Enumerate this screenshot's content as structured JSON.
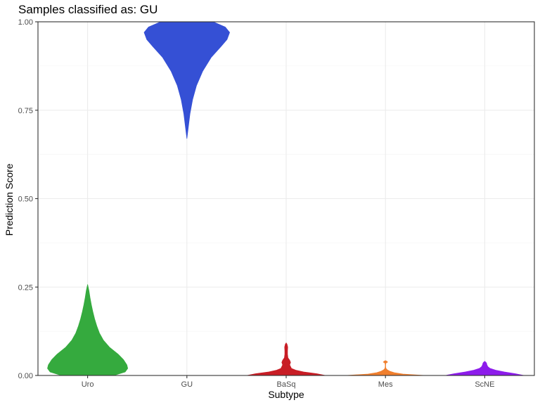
{
  "chart_data": {
    "type": "violin",
    "title": "Samples classified as: GU",
    "xlabel": "Subtype",
    "ylabel": "Prediction Score",
    "ylim": [
      0,
      1
    ],
    "y_ticks": [
      0.0,
      0.25,
      0.5,
      0.75,
      1.0
    ],
    "y_tick_labels": [
      "0.00",
      "0.25",
      "0.50",
      "0.75",
      "1.00"
    ],
    "grid": true,
    "categories": [
      "Uro",
      "GU",
      "BaSq",
      "Mes",
      "ScNE"
    ],
    "series": [
      {
        "category": "Uro",
        "color": "#35AA3E",
        "min": 0.0,
        "max": 0.257,
        "profile": [
          [
            0.0,
            0.6
          ],
          [
            0.01,
            0.86
          ],
          [
            0.02,
            0.92
          ],
          [
            0.03,
            0.9
          ],
          [
            0.045,
            0.82
          ],
          [
            0.06,
            0.7
          ],
          [
            0.08,
            0.5
          ],
          [
            0.1,
            0.36
          ],
          [
            0.12,
            0.27
          ],
          [
            0.14,
            0.21
          ],
          [
            0.16,
            0.16
          ],
          [
            0.18,
            0.12
          ],
          [
            0.2,
            0.085
          ],
          [
            0.22,
            0.055
          ],
          [
            0.24,
            0.03
          ],
          [
            0.257,
            0.0
          ]
        ]
      },
      {
        "category": "GU",
        "color": "#3550D5",
        "min": 0.67,
        "max": 1.0,
        "profile": [
          [
            0.67,
            0.0
          ],
          [
            0.7,
            0.03
          ],
          [
            0.74,
            0.07
          ],
          [
            0.78,
            0.13
          ],
          [
            0.82,
            0.22
          ],
          [
            0.86,
            0.36
          ],
          [
            0.9,
            0.56
          ],
          [
            0.93,
            0.78
          ],
          [
            0.95,
            0.92
          ],
          [
            0.97,
            0.98
          ],
          [
            0.985,
            0.88
          ],
          [
            1.0,
            0.6
          ]
        ]
      },
      {
        "category": "BaSq",
        "color": "#C81D25",
        "min": 0.0,
        "max": 0.092,
        "profile": [
          [
            0.0,
            0.9
          ],
          [
            0.005,
            0.7
          ],
          [
            0.01,
            0.4
          ],
          [
            0.015,
            0.22
          ],
          [
            0.02,
            0.12
          ],
          [
            0.03,
            0.08
          ],
          [
            0.037,
            0.1
          ],
          [
            0.043,
            0.08
          ],
          [
            0.05,
            0.04
          ],
          [
            0.06,
            0.03
          ],
          [
            0.07,
            0.03
          ],
          [
            0.08,
            0.035
          ],
          [
            0.088,
            0.02
          ],
          [
            0.092,
            0.0
          ]
        ]
      },
      {
        "category": "Mes",
        "color": "#F07F2E",
        "min": 0.0,
        "max": 0.042,
        "profile": [
          [
            0.0,
            0.9
          ],
          [
            0.004,
            0.4
          ],
          [
            0.008,
            0.2
          ],
          [
            0.012,
            0.1
          ],
          [
            0.016,
            0.04
          ],
          [
            0.02,
            0.01
          ],
          [
            0.025,
            0.005
          ],
          [
            0.03,
            0.005
          ],
          [
            0.035,
            0.01
          ],
          [
            0.038,
            0.05
          ],
          [
            0.04,
            0.03
          ],
          [
            0.042,
            0.0
          ]
        ]
      },
      {
        "category": "ScNE",
        "color": "#8D1CEB",
        "min": 0.0,
        "max": 0.04,
        "profile": [
          [
            0.0,
            0.9
          ],
          [
            0.005,
            0.7
          ],
          [
            0.01,
            0.45
          ],
          [
            0.015,
            0.25
          ],
          [
            0.02,
            0.12
          ],
          [
            0.025,
            0.07
          ],
          [
            0.03,
            0.05
          ],
          [
            0.035,
            0.04
          ],
          [
            0.038,
            0.02
          ],
          [
            0.04,
            0.0
          ]
        ]
      }
    ]
  }
}
